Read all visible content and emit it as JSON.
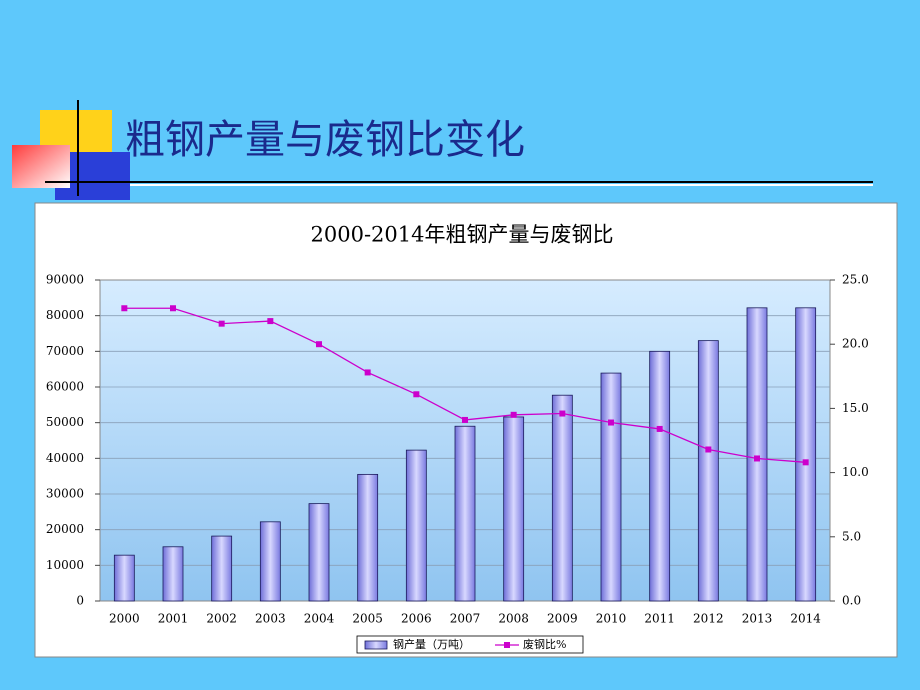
{
  "title": "粗钢产量与废钢比变化",
  "chart_data": {
    "type": "bar",
    "title": "2000-2014年粗钢产量与废钢比",
    "categories": [
      "2000",
      "2001",
      "2002",
      "2003",
      "2004",
      "2005",
      "2006",
      "2007",
      "2008",
      "2009",
      "2010",
      "2011",
      "2012",
      "2013",
      "2014"
    ],
    "series": [
      {
        "name": "钢产量（万吨）",
        "type": "bar",
        "color": "#9c9cf0",
        "values": [
          12850,
          15200,
          18200,
          22200,
          27300,
          35500,
          42300,
          49000,
          51600,
          57700,
          63900,
          70000,
          73000,
          82200,
          82200
        ]
      },
      {
        "name": "废钢比%",
        "type": "line",
        "axis": "y2",
        "color": "#cc00cc",
        "values": [
          22.8,
          22.8,
          21.6,
          21.8,
          20.0,
          17.8,
          16.1,
          14.1,
          14.5,
          14.6,
          13.9,
          13.4,
          11.8,
          11.1,
          10.8
        ]
      }
    ],
    "ylim": [
      0,
      90000
    ],
    "yticks": [
      0,
      10000,
      20000,
      30000,
      40000,
      50000,
      60000,
      70000,
      80000,
      90000
    ],
    "y2lim": [
      0,
      25
    ],
    "y2ticks": [
      {
        "value": 0,
        "label": "0.0"
      },
      {
        "value": 5,
        "label": "5.0"
      },
      {
        "value": 10,
        "label": "10.0"
      },
      {
        "value": 15,
        "label": "15.0"
      },
      {
        "value": 20,
        "label": "20.0"
      },
      {
        "value": 25,
        "label": "25.0"
      }
    ],
    "grid": true
  }
}
